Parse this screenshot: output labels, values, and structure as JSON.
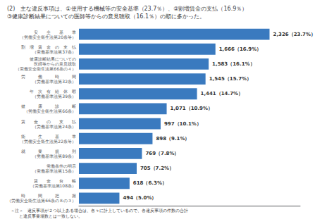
{
  "chart_data": {
    "type": "bar",
    "orientation": "horizontal",
    "title": "(2)　主な違反事項は、①使用する機械等の安全基準（23.7％）、②割増賃金の支払（16.9％）",
    "subtitle": "③健康診断結果についての医師等からの意見聴取（16.1％）の順に多かった。",
    "annotation": "＜注＞　違反事項が２つ以上ある場合は、各々に計上しているので、各違反事項の件数の合計\n　　と違反事業場数とは一致しない。",
    "categories": [
      "安　　全　　基　　準\n（労働安全衛生法第20条等）",
      "割　増　賃　金　の　支　払\n（労働基準法第37条）",
      "健康診断結果についての\n医師等からの意見聴取\n（労働安全衛生法第66条の４）",
      "労　　　働　　　時　　　間\n（労働基準法第32条）",
      "年　次　有　給　休　暇\n（労働基準法第39条）",
      "健　　　康　　　診　　　断\n（労働安全衛生法第66条）",
      "賃　　金　　の　　支　　払\n（労働基準法第24条）",
      "衛　　　生　　　基　　　準\n（労働安全衛生法第22条等）",
      "就　　　業　　　規　　　則\n（労働基準法第89条）",
      "労働条件の明示\n（労働基準法第15条）",
      "賃　　金　　台　　帳\n（労働基準法第108条）",
      "時　　　間　　　把　　　握\n（労働安全衛生法第66条の８の３）"
    ],
    "values": [
      2326,
      1666,
      1583,
      1545,
      1441,
      1071,
      997,
      898,
      769,
      705,
      618,
      494
    ],
    "value_labels": [
      "2,326（23.7%）",
      "1,666（16.9%）",
      "1,583（16.1%）",
      "1,545（15.7%）",
      "1,441（14.7%）",
      "1,071（10.9%）",
      "997（10.1%）",
      "898（9.1%）",
      "769（7.8%）",
      "705（7.2%）",
      "618（6.3%）",
      "494（5.0%）"
    ],
    "color": "#3a7abf",
    "xlim": [
      0,
      2700
    ],
    "data_labels": true,
    "tick_labels": "y",
    "grid": false
  }
}
